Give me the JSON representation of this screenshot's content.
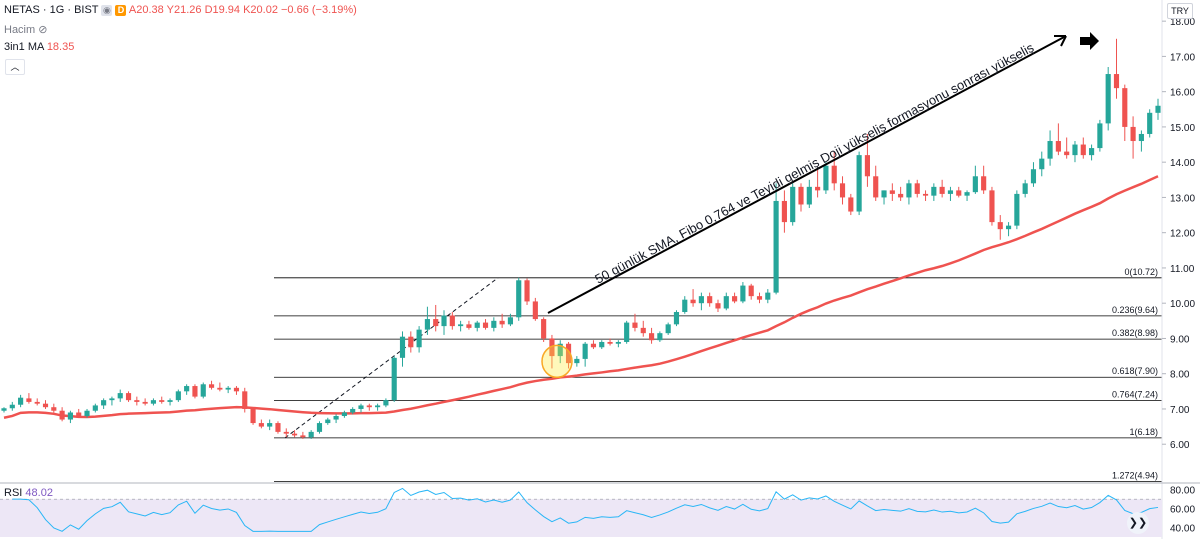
{
  "header": {
    "symbol": "NETAS · 1G · BIST",
    "ohlc": "A20.38  Y21.26  D19.94  K20.02  −0.66 (−3.19%)",
    "volume_label": "Hacim",
    "ma_label": "3in1 MA",
    "ma_value": "18.35",
    "currency": "TRY",
    "d_badge": "D"
  },
  "colors": {
    "up": "#26a69a",
    "down": "#ef5350",
    "sma": "#ef5350",
    "rsi_line": "#29b6f6",
    "rsi_band": "#ede7f6",
    "fibo": "#000000"
  },
  "chart_data": {
    "type": "candlestick",
    "y_ticks": [
      "6.00",
      "7.00",
      "8.00",
      "9.00",
      "10.00",
      "11.00",
      "12.00",
      "13.00",
      "14.00",
      "15.00",
      "16.00",
      "17.00",
      "18.00"
    ],
    "ylim": [
      4.9,
      18.6
    ],
    "candles": [
      [
        6.95,
        7.05,
        6.9,
        7.02
      ],
      [
        7.02,
        7.2,
        6.95,
        7.12
      ],
      [
        7.12,
        7.4,
        7.05,
        7.32
      ],
      [
        7.3,
        7.45,
        7.15,
        7.2
      ],
      [
        7.2,
        7.3,
        7.1,
        7.15
      ],
      [
        7.15,
        7.25,
        7.0,
        7.05
      ],
      [
        7.05,
        7.15,
        6.9,
        6.95
      ],
      [
        6.95,
        7.05,
        6.65,
        6.7
      ],
      [
        6.7,
        6.95,
        6.6,
        6.9
      ],
      [
        6.9,
        7.0,
        6.75,
        6.8
      ],
      [
        6.8,
        7.0,
        6.75,
        6.95
      ],
      [
        6.95,
        7.15,
        6.9,
        7.1
      ],
      [
        7.1,
        7.3,
        7.0,
        7.25
      ],
      [
        7.25,
        7.35,
        7.1,
        7.3
      ],
      [
        7.3,
        7.55,
        7.2,
        7.45
      ],
      [
        7.45,
        7.5,
        7.2,
        7.25
      ],
      [
        7.25,
        7.35,
        7.1,
        7.2
      ],
      [
        7.2,
        7.3,
        7.1,
        7.15
      ],
      [
        7.15,
        7.3,
        7.1,
        7.25
      ],
      [
        7.25,
        7.35,
        7.15,
        7.2
      ],
      [
        7.2,
        7.3,
        7.1,
        7.25
      ],
      [
        7.25,
        7.55,
        7.2,
        7.5
      ],
      [
        7.5,
        7.7,
        7.4,
        7.65
      ],
      [
        7.65,
        7.7,
        7.3,
        7.35
      ],
      [
        7.35,
        7.75,
        7.3,
        7.7
      ],
      [
        7.7,
        7.8,
        7.55,
        7.6
      ],
      [
        7.6,
        7.75,
        7.5,
        7.55
      ],
      [
        7.55,
        7.65,
        7.45,
        7.6
      ],
      [
        7.6,
        7.65,
        7.4,
        7.5
      ],
      [
        7.5,
        7.6,
        6.9,
        7.0
      ],
      [
        7.0,
        7.05,
        6.55,
        6.6
      ],
      [
        6.6,
        6.7,
        6.45,
        6.5
      ],
      [
        6.5,
        6.7,
        6.4,
        6.6
      ],
      [
        6.6,
        6.65,
        6.3,
        6.35
      ],
      [
        6.35,
        6.45,
        6.2,
        6.3
      ],
      [
        6.3,
        6.4,
        6.2,
        6.25
      ],
      [
        6.25,
        6.35,
        6.15,
        6.2
      ],
      [
        6.2,
        6.4,
        6.15,
        6.35
      ],
      [
        6.35,
        6.65,
        6.3,
        6.6
      ],
      [
        6.6,
        6.75,
        6.55,
        6.7
      ],
      [
        6.7,
        6.85,
        6.6,
        6.8
      ],
      [
        6.8,
        6.95,
        6.75,
        6.9
      ],
      [
        6.9,
        7.05,
        6.85,
        7.0
      ],
      [
        7.0,
        7.15,
        6.9,
        7.1
      ],
      [
        7.1,
        7.15,
        6.95,
        7.05
      ],
      [
        7.05,
        7.15,
        6.95,
        7.1
      ],
      [
        7.1,
        7.3,
        7.05,
        7.25
      ],
      [
        7.25,
        8.5,
        7.2,
        8.45
      ],
      [
        8.45,
        9.2,
        8.2,
        9.05
      ],
      [
        9.05,
        9.2,
        8.6,
        8.75
      ],
      [
        8.75,
        9.35,
        8.6,
        9.25
      ],
      [
        9.25,
        9.9,
        9.1,
        9.55
      ],
      [
        9.55,
        9.95,
        9.2,
        9.35
      ],
      [
        9.35,
        9.8,
        9.1,
        9.65
      ],
      [
        9.65,
        9.75,
        9.25,
        9.35
      ],
      [
        9.35,
        9.5,
        9.2,
        9.4
      ],
      [
        9.4,
        9.5,
        9.25,
        9.3
      ],
      [
        9.3,
        9.5,
        9.2,
        9.45
      ],
      [
        9.45,
        9.55,
        9.25,
        9.3
      ],
      [
        9.3,
        9.6,
        9.2,
        9.5
      ],
      [
        9.5,
        9.7,
        9.3,
        9.4
      ],
      [
        9.4,
        9.7,
        9.35,
        9.6
      ],
      [
        9.6,
        10.72,
        9.5,
        10.65
      ],
      [
        10.65,
        10.7,
        9.95,
        10.05
      ],
      [
        10.05,
        10.15,
        9.5,
        9.55
      ],
      [
        9.55,
        9.6,
        8.9,
        9.0
      ],
      [
        9.0,
        9.1,
        8.15,
        8.5
      ],
      [
        8.5,
        8.95,
        8.3,
        8.85
      ],
      [
        8.85,
        8.9,
        8.15,
        8.3
      ],
      [
        8.3,
        8.5,
        8.2,
        8.42
      ],
      [
        8.42,
        8.9,
        8.2,
        8.85
      ],
      [
        8.85,
        8.95,
        8.7,
        8.75
      ],
      [
        8.75,
        8.95,
        8.7,
        8.9
      ],
      [
        8.9,
        9.0,
        8.8,
        8.85
      ],
      [
        8.85,
        8.95,
        8.75,
        8.9
      ],
      [
        8.9,
        9.5,
        8.85,
        9.45
      ],
      [
        9.45,
        9.7,
        9.2,
        9.3
      ],
      [
        9.3,
        9.5,
        9.05,
        9.15
      ],
      [
        9.15,
        9.3,
        8.85,
        8.95
      ],
      [
        8.95,
        9.2,
        8.9,
        9.15
      ],
      [
        9.15,
        9.45,
        9.1,
        9.4
      ],
      [
        9.4,
        9.8,
        9.35,
        9.75
      ],
      [
        9.75,
        10.2,
        9.7,
        10.1
      ],
      [
        10.1,
        10.4,
        9.9,
        10.0
      ],
      [
        10.0,
        10.3,
        9.8,
        10.2
      ],
      [
        10.2,
        10.3,
        9.9,
        10.0
      ],
      [
        10.0,
        10.1,
        9.75,
        9.85
      ],
      [
        9.85,
        10.3,
        9.8,
        10.2
      ],
      [
        10.2,
        10.3,
        10.0,
        10.05
      ],
      [
        10.05,
        10.6,
        10.0,
        10.5
      ],
      [
        10.5,
        10.55,
        10.1,
        10.2
      ],
      [
        10.2,
        10.3,
        10.0,
        10.1
      ],
      [
        10.1,
        10.4,
        10.0,
        10.3
      ],
      [
        10.3,
        13.4,
        10.25,
        12.9
      ],
      [
        12.9,
        13.2,
        12.0,
        12.3
      ],
      [
        12.3,
        13.4,
        12.2,
        13.3
      ],
      [
        13.3,
        13.4,
        12.6,
        12.8
      ],
      [
        12.8,
        13.5,
        12.7,
        13.3
      ],
      [
        13.3,
        13.8,
        13.0,
        13.2
      ],
      [
        13.2,
        14.0,
        13.1,
        13.9
      ],
      [
        13.9,
        14.3,
        13.2,
        13.4
      ],
      [
        13.4,
        13.6,
        12.8,
        13.0
      ],
      [
        13.0,
        13.1,
        12.5,
        12.6
      ],
      [
        12.6,
        14.3,
        12.5,
        14.2
      ],
      [
        14.2,
        14.8,
        13.3,
        13.6
      ],
      [
        13.6,
        13.9,
        12.9,
        13.0
      ],
      [
        13.0,
        13.2,
        12.8,
        13.2
      ],
      [
        13.2,
        13.4,
        12.9,
        13.1
      ],
      [
        13.1,
        13.3,
        12.9,
        13.0
      ],
      [
        13.0,
        13.5,
        12.8,
        13.4
      ],
      [
        13.4,
        13.5,
        13.0,
        13.1
      ],
      [
        13.1,
        13.2,
        12.9,
        13.05
      ],
      [
        13.05,
        13.4,
        12.9,
        13.3
      ],
      [
        13.3,
        13.5,
        13.0,
        13.1
      ],
      [
        13.1,
        13.3,
        12.9,
        13.2
      ],
      [
        13.2,
        13.3,
        13.0,
        13.05
      ],
      [
        13.05,
        13.2,
        12.9,
        13.15
      ],
      [
        13.15,
        13.9,
        13.1,
        13.6
      ],
      [
        13.6,
        13.9,
        13.1,
        13.2
      ],
      [
        13.2,
        13.3,
        12.2,
        12.3
      ],
      [
        12.3,
        12.5,
        11.8,
        12.1
      ],
      [
        12.1,
        12.3,
        11.9,
        12.2
      ],
      [
        12.2,
        13.2,
        12.1,
        13.1
      ],
      [
        13.1,
        13.5,
        13.0,
        13.4
      ],
      [
        13.4,
        14.0,
        13.3,
        13.8
      ],
      [
        13.8,
        14.3,
        13.6,
        14.1
      ],
      [
        14.1,
        14.9,
        13.9,
        14.6
      ],
      [
        14.6,
        15.1,
        14.2,
        14.3
      ],
      [
        14.3,
        14.7,
        14.1,
        14.2
      ],
      [
        14.2,
        14.6,
        14.0,
        14.5
      ],
      [
        14.5,
        14.7,
        14.1,
        14.2
      ],
      [
        14.2,
        14.5,
        14.05,
        14.4
      ],
      [
        14.4,
        15.2,
        14.3,
        15.1
      ],
      [
        15.1,
        16.7,
        14.9,
        16.5
      ],
      [
        16.5,
        17.5,
        15.8,
        16.1
      ],
      [
        16.1,
        16.2,
        14.6,
        15.0
      ],
      [
        15.0,
        15.3,
        14.1,
        14.6
      ],
      [
        14.6,
        14.9,
        14.3,
        14.8
      ],
      [
        14.8,
        15.5,
        14.7,
        15.4
      ],
      [
        15.4,
        15.8,
        15.2,
        15.6
      ]
    ],
    "sma_ticks": [
      "6.9",
      "7.0",
      "8.0",
      "9.0",
      "10.0",
      "11.0",
      "12.0",
      "13.0",
      "13.6"
    ],
    "fibo_levels": [
      {
        "label": "0(10.72)",
        "value": 10.72
      },
      {
        "label": "0.236(9.64)",
        "value": 9.64
      },
      {
        "label": "0.382(8.98)",
        "value": 8.98
      },
      {
        "label": "0.618(7.90)",
        "value": 7.9
      },
      {
        "label": "0.764(7.24)",
        "value": 7.24
      },
      {
        "label": "1(6.18)",
        "value": 6.18
      },
      {
        "label": "1.272(4.94)",
        "value": 4.94
      }
    ],
    "annotation": "50 günlük SMA, Fibo 0,764 ve Teyidi gelmiş Doji yükseliş formasyonu sonrası yükseliş",
    "rsi": {
      "label": "RSI",
      "value": "48.02",
      "ticks": [
        "80.00",
        "60.00",
        "40.00"
      ],
      "ylim": [
        30,
        85
      ],
      "band": [
        30,
        70
      ]
    }
  }
}
